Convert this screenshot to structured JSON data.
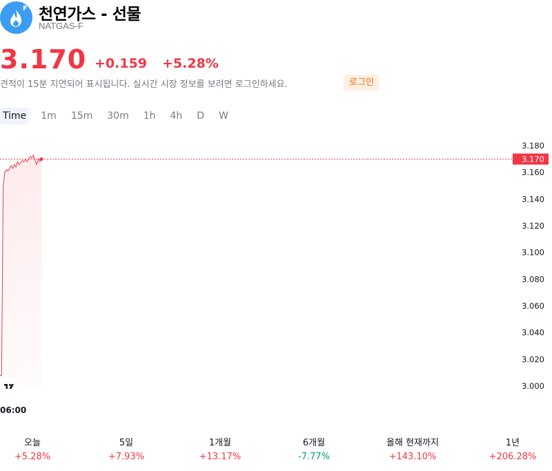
{
  "header": {
    "title": "천연가스 - 선물",
    "ticker": "NATGAS-F",
    "logo_letter": "F",
    "logo_color": "#3d9df3",
    "logo_icon": "flame-icon"
  },
  "quote": {
    "price": "3.170",
    "change": "+0.159",
    "change_pct": "+5.28%",
    "color": "#f23645"
  },
  "notice": {
    "text": "견적이 15분 지연되어 표시됩니다. 실시간 시장 정보를 보려면 로그인하세요.",
    "login_label": "로그인"
  },
  "intervals": [
    "Time",
    "1m",
    "15m",
    "30m",
    "1h",
    "4h",
    "D",
    "W"
  ],
  "active_interval": "Time",
  "chart_data": {
    "type": "area",
    "series": [
      {
        "values": [
          3.008,
          3.008,
          3.15,
          3.16,
          3.162,
          3.161,
          3.163,
          3.165,
          3.163,
          3.166,
          3.164,
          3.168,
          3.166,
          3.167,
          3.169,
          3.168,
          3.17,
          3.168,
          3.17,
          3.172,
          3.171,
          3.173,
          3.169,
          3.166,
          3.17,
          3.168,
          3.17
        ]
      }
    ],
    "xlabel": "",
    "ylabel": "",
    "x_tick_labels": [
      "06:00"
    ],
    "y_ticks": [
      "3.180",
      "3.160",
      "3.140",
      "3.120",
      "3.100",
      "3.080",
      "3.060",
      "3.040",
      "3.020",
      "3.000"
    ],
    "ylim": [
      3.0,
      3.18
    ],
    "last_price_label": "3.170",
    "last_price": 3.17,
    "line_color": "#f23645",
    "watermark": "TV"
  },
  "periods": [
    {
      "label": "오늘",
      "value": "+5.28%",
      "dir": "up"
    },
    {
      "label": "5일",
      "value": "+7.93%",
      "dir": "up"
    },
    {
      "label": "1개월",
      "value": "+13.17%",
      "dir": "up"
    },
    {
      "label": "6개월",
      "value": "-7.77%",
      "dir": "down"
    },
    {
      "label": "올해 현재까지",
      "value": "+143.10%",
      "dir": "up"
    },
    {
      "label": "1년",
      "value": "+206.28%",
      "dir": "up"
    }
  ]
}
